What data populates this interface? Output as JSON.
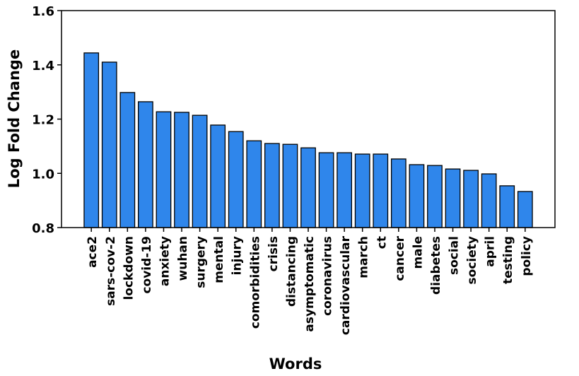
{
  "chart_data": {
    "type": "bar",
    "x_label": "Words",
    "y_label": "Log Fold Change",
    "categories": [
      "ace2",
      "sars-cov-2",
      "lockdown",
      "covid-19",
      "anxiety",
      "wuhan",
      "surgery",
      "mental",
      "injury",
      "comorbidities",
      "crisis",
      "distancing",
      "asymptomatic",
      "coronavirus",
      "cardiovascular",
      "march",
      "ct",
      "cancer",
      "male",
      "diabetes",
      "social",
      "society",
      "april",
      "testing",
      "policy"
    ],
    "values": [
      1.444,
      1.41,
      1.298,
      1.264,
      1.227,
      1.225,
      1.214,
      1.178,
      1.154,
      1.12,
      1.11,
      1.107,
      1.094,
      1.076,
      1.076,
      1.071,
      1.071,
      1.053,
      1.032,
      1.029,
      1.016,
      1.011,
      0.998,
      0.954,
      0.933
    ],
    "color": "#2f86eb",
    "ylim": [
      0.8,
      1.6
    ],
    "yticks": [
      0.8,
      {
        "value": 1,
        "label": "1.0"
      },
      1.2,
      1.4,
      1.6
    ]
  }
}
